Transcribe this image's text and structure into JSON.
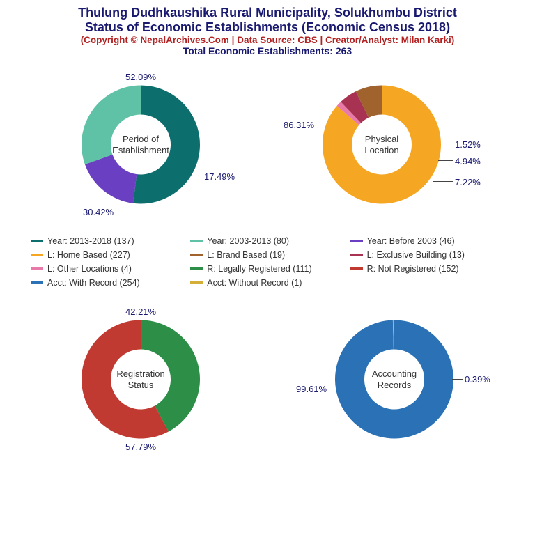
{
  "header": {
    "title": "Thulung Dudhkaushika Rural Municipality, Solukhumbu District",
    "subtitle": "Status of Economic Establishments (Economic Census 2018)",
    "copyright": "(Copyright © NepalArchives.Com | Data Source: CBS | Creator/Analyst: Milan Karki)",
    "total": "Total Economic Establishments: 263",
    "title_color": "#191970",
    "title_fontsize": 18,
    "copyright_color": "#b22222",
    "copyright_fontsize": 13.5,
    "total_color": "#191970",
    "total_fontsize": 14
  },
  "charts": {
    "period": {
      "center_label_l1": "Period of",
      "center_label_l2": "Establishment",
      "slices": [
        {
          "value": 137,
          "pct": "52.09%",
          "color": "#0d6e6e"
        },
        {
          "value": 46,
          "pct": "17.49%",
          "color": "#6a3fc1"
        },
        {
          "value": 80,
          "pct": "30.42%",
          "color": "#5fc2a6"
        }
      ],
      "label_color": "#191970"
    },
    "location": {
      "center_label_l1": "Physical",
      "center_label_l2": "Location",
      "slices": [
        {
          "value": 227,
          "pct": "86.31%",
          "color": "#f5a623"
        },
        {
          "value": 4,
          "pct": "1.52%",
          "color": "#e879a8"
        },
        {
          "value": 13,
          "pct": "4.94%",
          "color": "#a83251"
        },
        {
          "value": 19,
          "pct": "7.22%",
          "color": "#a0632e"
        }
      ],
      "label_color": "#191970"
    },
    "registration": {
      "center_label_l1": "Registration",
      "center_label_l2": "Status",
      "slices": [
        {
          "value": 111,
          "pct": "42.21%",
          "color": "#2d8f47"
        },
        {
          "value": 152,
          "pct": "57.79%",
          "color": "#c13a32"
        }
      ],
      "label_color": "#191970"
    },
    "accounting": {
      "center_label_l1": "Accounting",
      "center_label_l2": "Records",
      "slices": [
        {
          "value": 254,
          "pct": "99.61%",
          "color": "#2a72b5"
        },
        {
          "value": 1,
          "pct": "0.39%",
          "color": "#d4af37"
        }
      ],
      "label_color": "#191970"
    }
  },
  "legend": {
    "items": [
      {
        "label": "Year: 2013-2018 (137)",
        "color": "#0d6e6e"
      },
      {
        "label": "Year: 2003-2013 (80)",
        "color": "#5fc2a6"
      },
      {
        "label": "Year: Before 2003 (46)",
        "color": "#6a3fc1"
      },
      {
        "label": "L: Home Based (227)",
        "color": "#f5a623"
      },
      {
        "label": "L: Brand Based (19)",
        "color": "#a0632e"
      },
      {
        "label": "L: Exclusive Building (13)",
        "color": "#a83251"
      },
      {
        "label": "L: Other Locations (4)",
        "color": "#e879a8"
      },
      {
        "label": "R: Legally Registered (111)",
        "color": "#2d8f47"
      },
      {
        "label": "R: Not Registered (152)",
        "color": "#c13a32"
      },
      {
        "label": "Acct: With Record (254)",
        "color": "#2a72b5"
      },
      {
        "label": "Acct: Without Record (1)",
        "color": "#d4af37"
      }
    ]
  },
  "donut": {
    "outer_r": 85,
    "inner_r": 43,
    "start_angle_deg": -90
  }
}
